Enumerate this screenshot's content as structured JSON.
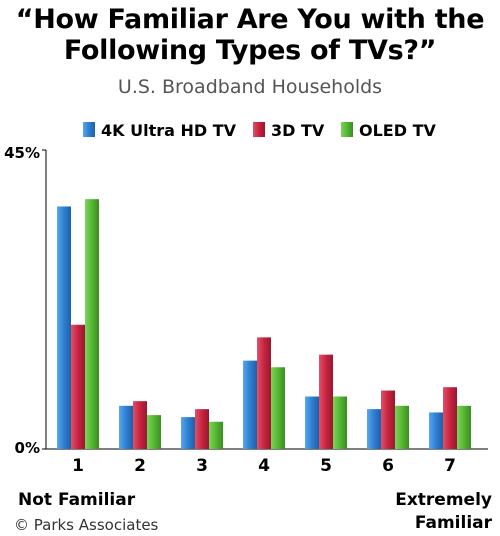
{
  "chart_data": {
    "type": "bar",
    "title_line1": "“How Familiar Are You with the",
    "title_line2": "Following Types of TVs?”",
    "subtitle": "U.S. Broadband Households",
    "categories": [
      "1",
      "2",
      "3",
      "4",
      "5",
      "6",
      "7"
    ],
    "series": [
      {
        "name": "4K Ultra HD TV",
        "color": "#2f7fd1",
        "values": [
          36.5,
          6.5,
          4.8,
          13.3,
          7.9,
          6.0,
          5.5
        ]
      },
      {
        "name": "3D TV",
        "color": "#c8243f",
        "values": [
          18.7,
          7.2,
          6.0,
          16.8,
          14.2,
          8.8,
          9.3
        ]
      },
      {
        "name": "OLED TV",
        "color": "#55b733",
        "values": [
          37.6,
          5.1,
          4.1,
          12.3,
          7.9,
          6.5,
          6.5
        ]
      }
    ],
    "ylim": [
      0,
      45
    ],
    "y_tick_labels": [
      "45%",
      "0%"
    ],
    "x_end_labels": {
      "left": "Not Familiar",
      "right_line1": "Extremely",
      "right_line2": "Familiar"
    },
    "grid": false,
    "legend_position": "top"
  },
  "credit": "© Parks Associates"
}
